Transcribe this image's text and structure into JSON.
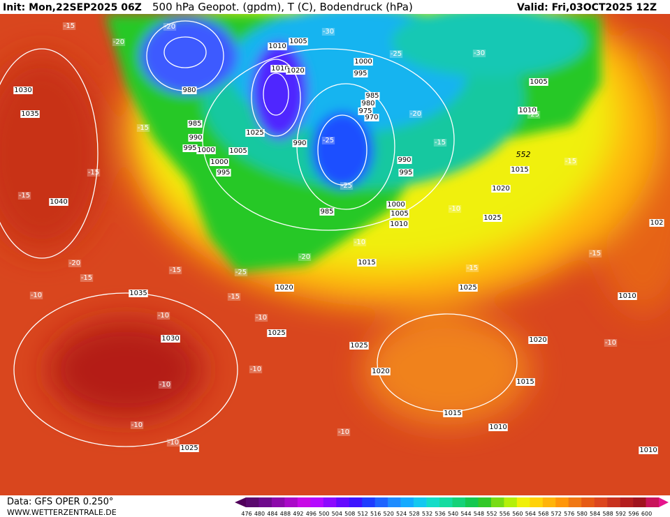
{
  "header": {
    "init": "Init: Mon,22SEP2025 06Z",
    "title": "500 hPa Geopot. (gpdm), T (C), Bodendruck (hPa)",
    "valid": "Valid: Fri,03OCT2025 12Z"
  },
  "footer": {
    "data": "Data: GFS OPER 0.250°",
    "site": "WWW.WETTERZENTRALE.DE"
  },
  "colorbar": {
    "labels": [
      476,
      480,
      484,
      488,
      492,
      496,
      500,
      504,
      508,
      512,
      516,
      520,
      524,
      528,
      532,
      536,
      540,
      544,
      548,
      552,
      556,
      560,
      564,
      568,
      572,
      576,
      580,
      584,
      588,
      592,
      596,
      600
    ],
    "colors": [
      "#5a0a6e",
      "#6e0a8c",
      "#8c0aaa",
      "#aa0ac8",
      "#c80ae6",
      "#b40aff",
      "#8c0aff",
      "#640aff",
      "#3c14ff",
      "#1e3cff",
      "#1e64ff",
      "#1e8cff",
      "#14aaff",
      "#14c8f0",
      "#14dcc8",
      "#14dca0",
      "#14d278",
      "#14c850",
      "#32c828",
      "#78dc14",
      "#b4f00a",
      "#f0f00a",
      "#ffd20a",
      "#ffb40a",
      "#ff960a",
      "#f07814",
      "#e65a14",
      "#dc461e",
      "#c8321e",
      "#b41e1e",
      "#a0141e",
      "#c8145a"
    ]
  },
  "map": {
    "isobar_labels": [
      "1030",
      "1035",
      "1040",
      "1035",
      "1030",
      "1025",
      "1005",
      "1010",
      "1010",
      "1020",
      "980",
      "985",
      "990",
      "995",
      "1000",
      "1000",
      "995",
      "1005",
      "1025",
      "990",
      "985",
      "1000",
      "995",
      "985",
      "980",
      "975",
      "970",
      "990",
      "995",
      "1000",
      "1005",
      "1010",
      "1015",
      "1020",
      "1025",
      "1025",
      "1020",
      "1025",
      "1025",
      "1020",
      "1015",
      "1005",
      "1010",
      "1020",
      "1015",
      "1015",
      "1010",
      "1010",
      "1010",
      "102"
    ],
    "temp_labels": [
      "-15",
      "-20",
      "-20",
      "-30",
      "-25",
      "-30",
      "-15",
      "-15",
      "-15",
      "-20",
      "-15",
      "-15",
      "-10",
      "-10",
      "-15",
      "-25",
      "-20",
      "-10",
      "-10",
      "-10",
      "-10",
      "-10",
      "-10",
      "-10",
      "-25",
      "-25",
      "-20",
      "-15",
      "-10",
      "-15",
      "-15",
      "-15",
      "-25",
      "-10"
    ],
    "height_label": "552"
  }
}
